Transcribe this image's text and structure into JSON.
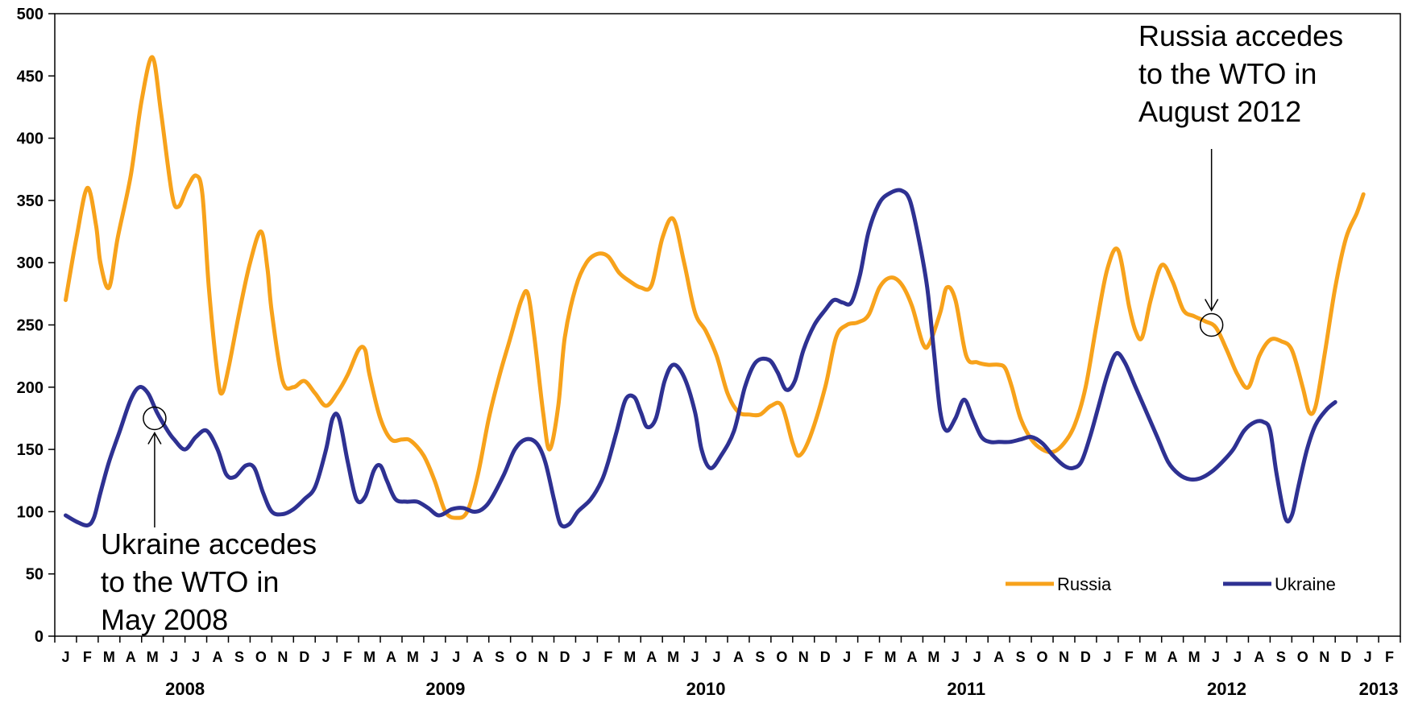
{
  "chart_data": {
    "type": "line",
    "title": "",
    "xlabel": "",
    "ylabel": "",
    "ylim": [
      0,
      500
    ],
    "yticks": [
      "0",
      "50",
      "100",
      "150",
      "200",
      "250",
      "300",
      "350",
      "400",
      "450",
      "500"
    ],
    "grid": false,
    "legend_position": "bottom-right",
    "months": [
      "J",
      "F",
      "M",
      "A",
      "M",
      "J",
      "J",
      "A",
      "S",
      "O",
      "N",
      "D",
      "J",
      "F",
      "M",
      "A",
      "M",
      "J",
      "J",
      "A",
      "S",
      "O",
      "N",
      "D",
      "J",
      "F",
      "M",
      "A",
      "M",
      "J",
      "J",
      "A",
      "S",
      "O",
      "N",
      "D",
      "J",
      "F",
      "M",
      "A",
      "M",
      "J",
      "J",
      "A",
      "S",
      "O",
      "N",
      "D",
      "J",
      "F",
      "M",
      "A",
      "M",
      "J",
      "J",
      "A",
      "S",
      "O",
      "N",
      "D",
      "J",
      "F"
    ],
    "years": [
      "2008",
      "2009",
      "2010",
      "2011",
      "2012",
      "2013"
    ],
    "series": [
      {
        "name": "Russia",
        "color": "#F7A21B",
        "points": [
          [
            0,
            270
          ],
          [
            0.5,
            320
          ],
          [
            1,
            360
          ],
          [
            1.4,
            330
          ],
          [
            1.6,
            300
          ],
          [
            2,
            280
          ],
          [
            2.4,
            320
          ],
          [
            3,
            370
          ],
          [
            3.5,
            430
          ],
          [
            4,
            465
          ],
          [
            4.4,
            420
          ],
          [
            4.9,
            355
          ],
          [
            5.2,
            345
          ],
          [
            5.6,
            360
          ],
          [
            6,
            370
          ],
          [
            6.3,
            355
          ],
          [
            6.6,
            280
          ],
          [
            7,
            210
          ],
          [
            7.2,
            195
          ],
          [
            7.5,
            215
          ],
          [
            8,
            260
          ],
          [
            8.5,
            300
          ],
          [
            9,
            325
          ],
          [
            9.3,
            295
          ],
          [
            9.5,
            260
          ],
          [
            10,
            205
          ],
          [
            10.5,
            200
          ],
          [
            11,
            205
          ],
          [
            11.5,
            195
          ],
          [
            12,
            185
          ],
          [
            12.5,
            195
          ],
          [
            13,
            210
          ],
          [
            13.5,
            230
          ],
          [
            13.8,
            230
          ],
          [
            14,
            210
          ],
          [
            14.5,
            175
          ],
          [
            15,
            158
          ],
          [
            15.5,
            158
          ],
          [
            15.9,
            157
          ],
          [
            16.5,
            145
          ],
          [
            17,
            125
          ],
          [
            17.5,
            100
          ],
          [
            18,
            95
          ],
          [
            18.5,
            100
          ],
          [
            19,
            130
          ],
          [
            19.5,
            175
          ],
          [
            20,
            210
          ],
          [
            20.5,
            240
          ],
          [
            21,
            270
          ],
          [
            21.3,
            275
          ],
          [
            21.6,
            240
          ],
          [
            22,
            180
          ],
          [
            22.3,
            150
          ],
          [
            22.7,
            185
          ],
          [
            23,
            240
          ],
          [
            23.5,
            280
          ],
          [
            24,
            300
          ],
          [
            24.5,
            307
          ],
          [
            25,
            305
          ],
          [
            25.5,
            292
          ],
          [
            26,
            285
          ],
          [
            26.5,
            280
          ],
          [
            27,
            282
          ],
          [
            27.5,
            320
          ],
          [
            28,
            335
          ],
          [
            28.5,
            300
          ],
          [
            29,
            260
          ],
          [
            29.5,
            245
          ],
          [
            30,
            225
          ],
          [
            30.5,
            195
          ],
          [
            31,
            180
          ],
          [
            31.5,
            178
          ],
          [
            32,
            178
          ],
          [
            32.5,
            185
          ],
          [
            33,
            185
          ],
          [
            33.5,
            155
          ],
          [
            33.8,
            145
          ],
          [
            34.3,
            160
          ],
          [
            35,
            200
          ],
          [
            35.5,
            240
          ],
          [
            36,
            250
          ],
          [
            36.5,
            252
          ],
          [
            37,
            258
          ],
          [
            37.5,
            280
          ],
          [
            38,
            288
          ],
          [
            38.5,
            283
          ],
          [
            39,
            265
          ],
          [
            39.5,
            235
          ],
          [
            39.8,
            235
          ],
          [
            40.3,
            260
          ],
          [
            40.6,
            280
          ],
          [
            41,
            270
          ],
          [
            41.5,
            225
          ],
          [
            42,
            220
          ],
          [
            42.5,
            218
          ],
          [
            43,
            218
          ],
          [
            43.3,
            215
          ],
          [
            43.6,
            200
          ],
          [
            44,
            175
          ],
          [
            44.5,
            158
          ],
          [
            45,
            150
          ],
          [
            45.5,
            148
          ],
          [
            46,
            155
          ],
          [
            46.5,
            170
          ],
          [
            47,
            200
          ],
          [
            47.5,
            250
          ],
          [
            48,
            295
          ],
          [
            48.5,
            310
          ],
          [
            49,
            265
          ],
          [
            49.3,
            245
          ],
          [
            49.6,
            240
          ],
          [
            50,
            270
          ],
          [
            50.5,
            298
          ],
          [
            51,
            285
          ],
          [
            51.5,
            262
          ],
          [
            52,
            257
          ],
          [
            52.5,
            253
          ],
          [
            53,
            248
          ],
          [
            53.5,
            230
          ],
          [
            54,
            210
          ],
          [
            54.5,
            200
          ],
          [
            55,
            225
          ],
          [
            55.5,
            238
          ],
          [
            56,
            237
          ],
          [
            56.5,
            230
          ],
          [
            57,
            200
          ],
          [
            57.3,
            180
          ],
          [
            57.6,
            185
          ],
          [
            58,
            225
          ],
          [
            58.5,
            280
          ],
          [
            59,
            320
          ],
          [
            59.5,
            340
          ],
          [
            59.8,
            355
          ]
        ]
      },
      {
        "name": "Ukraine",
        "color": "#2E3192",
        "points": [
          [
            0,
            97
          ],
          [
            0.5,
            92
          ],
          [
            1,
            89
          ],
          [
            1.3,
            95
          ],
          [
            1.6,
            115
          ],
          [
            2,
            140
          ],
          [
            2.5,
            165
          ],
          [
            3,
            190
          ],
          [
            3.4,
            200
          ],
          [
            3.8,
            195
          ],
          [
            4.2,
            180
          ],
          [
            4.7,
            165
          ],
          [
            5,
            158
          ],
          [
            5.5,
            150
          ],
          [
            6,
            160
          ],
          [
            6.5,
            165
          ],
          [
            7,
            150
          ],
          [
            7.4,
            130
          ],
          [
            7.8,
            128
          ],
          [
            8.3,
            137
          ],
          [
            8.7,
            135
          ],
          [
            9.1,
            115
          ],
          [
            9.5,
            100
          ],
          [
            10,
            98
          ],
          [
            10.5,
            102
          ],
          [
            11,
            110
          ],
          [
            11.5,
            120
          ],
          [
            12,
            150
          ],
          [
            12.3,
            175
          ],
          [
            12.6,
            175
          ],
          [
            13,
            140
          ],
          [
            13.4,
            110
          ],
          [
            13.8,
            112
          ],
          [
            14.2,
            133
          ],
          [
            14.5,
            137
          ],
          [
            14.8,
            125
          ],
          [
            15.2,
            110
          ],
          [
            15.7,
            108
          ],
          [
            16.2,
            108
          ],
          [
            16.7,
            103
          ],
          [
            17.2,
            97
          ],
          [
            17.8,
            102
          ],
          [
            18.3,
            103
          ],
          [
            18.8,
            100
          ],
          [
            19.2,
            102
          ],
          [
            19.6,
            110
          ],
          [
            20.2,
            130
          ],
          [
            20.7,
            150
          ],
          [
            21.2,
            158
          ],
          [
            21.7,
            155
          ],
          [
            22.1,
            140
          ],
          [
            22.5,
            110
          ],
          [
            22.8,
            90
          ],
          [
            23.2,
            90
          ],
          [
            23.6,
            100
          ],
          [
            24.2,
            110
          ],
          [
            24.7,
            125
          ],
          [
            25,
            140
          ],
          [
            25.4,
            165
          ],
          [
            25.8,
            190
          ],
          [
            26.2,
            192
          ],
          [
            26.5,
            180
          ],
          [
            26.8,
            168
          ],
          [
            27.2,
            175
          ],
          [
            27.6,
            205
          ],
          [
            28,
            218
          ],
          [
            28.5,
            208
          ],
          [
            29,
            180
          ],
          [
            29.3,
            150
          ],
          [
            29.7,
            135
          ],
          [
            30.2,
            145
          ],
          [
            30.8,
            165
          ],
          [
            31.3,
            200
          ],
          [
            31.8,
            220
          ],
          [
            32.4,
            222
          ],
          [
            32.8,
            212
          ],
          [
            33.2,
            198
          ],
          [
            33.6,
            205
          ],
          [
            34,
            230
          ],
          [
            34.5,
            250
          ],
          [
            35,
            262
          ],
          [
            35.4,
            270
          ],
          [
            35.8,
            268
          ],
          [
            36.2,
            268
          ],
          [
            36.6,
            290
          ],
          [
            37,
            325
          ],
          [
            37.5,
            348
          ],
          [
            38,
            356
          ],
          [
            38.5,
            358
          ],
          [
            38.9,
            350
          ],
          [
            39.3,
            320
          ],
          [
            39.7,
            280
          ],
          [
            40,
            230
          ],
          [
            40.3,
            180
          ],
          [
            40.6,
            165
          ],
          [
            41,
            175
          ],
          [
            41.4,
            190
          ],
          [
            41.8,
            175
          ],
          [
            42.2,
            160
          ],
          [
            42.6,
            156
          ],
          [
            43,
            156
          ],
          [
            43.5,
            156
          ],
          [
            44,
            158
          ],
          [
            44.5,
            160
          ],
          [
            45,
            155
          ],
          [
            45.5,
            145
          ],
          [
            46,
            137
          ],
          [
            46.4,
            135
          ],
          [
            46.8,
            140
          ],
          [
            47.2,
            160
          ],
          [
            47.6,
            185
          ],
          [
            48,
            210
          ],
          [
            48.4,
            227
          ],
          [
            48.8,
            220
          ],
          [
            49.3,
            200
          ],
          [
            49.8,
            180
          ],
          [
            50.3,
            160
          ],
          [
            50.8,
            140
          ],
          [
            51.3,
            130
          ],
          [
            51.8,
            126
          ],
          [
            52.3,
            127
          ],
          [
            52.8,
            132
          ],
          [
            53.3,
            140
          ],
          [
            53.8,
            150
          ],
          [
            54.3,
            165
          ],
          [
            54.8,
            172
          ],
          [
            55.2,
            172
          ],
          [
            55.5,
            165
          ],
          [
            55.8,
            130
          ],
          [
            56.2,
            95
          ],
          [
            56.5,
            97
          ],
          [
            56.8,
            120
          ],
          [
            57.2,
            150
          ],
          [
            57.6,
            170
          ],
          [
            58.1,
            182
          ],
          [
            58.5,
            188
          ]
        ]
      }
    ],
    "annotations": [
      {
        "text_lines": [
          "Ukraine accedes",
          "to the WTO in",
          "May 2008"
        ],
        "at": {
          "series": "Ukraine",
          "x": 4.1,
          "y": 175
        }
      },
      {
        "text_lines": [
          "Russia accedes",
          "to the WTO in",
          "August 2012"
        ],
        "at": {
          "series": "Russia",
          "x": 52.8,
          "y": 250
        }
      }
    ]
  }
}
